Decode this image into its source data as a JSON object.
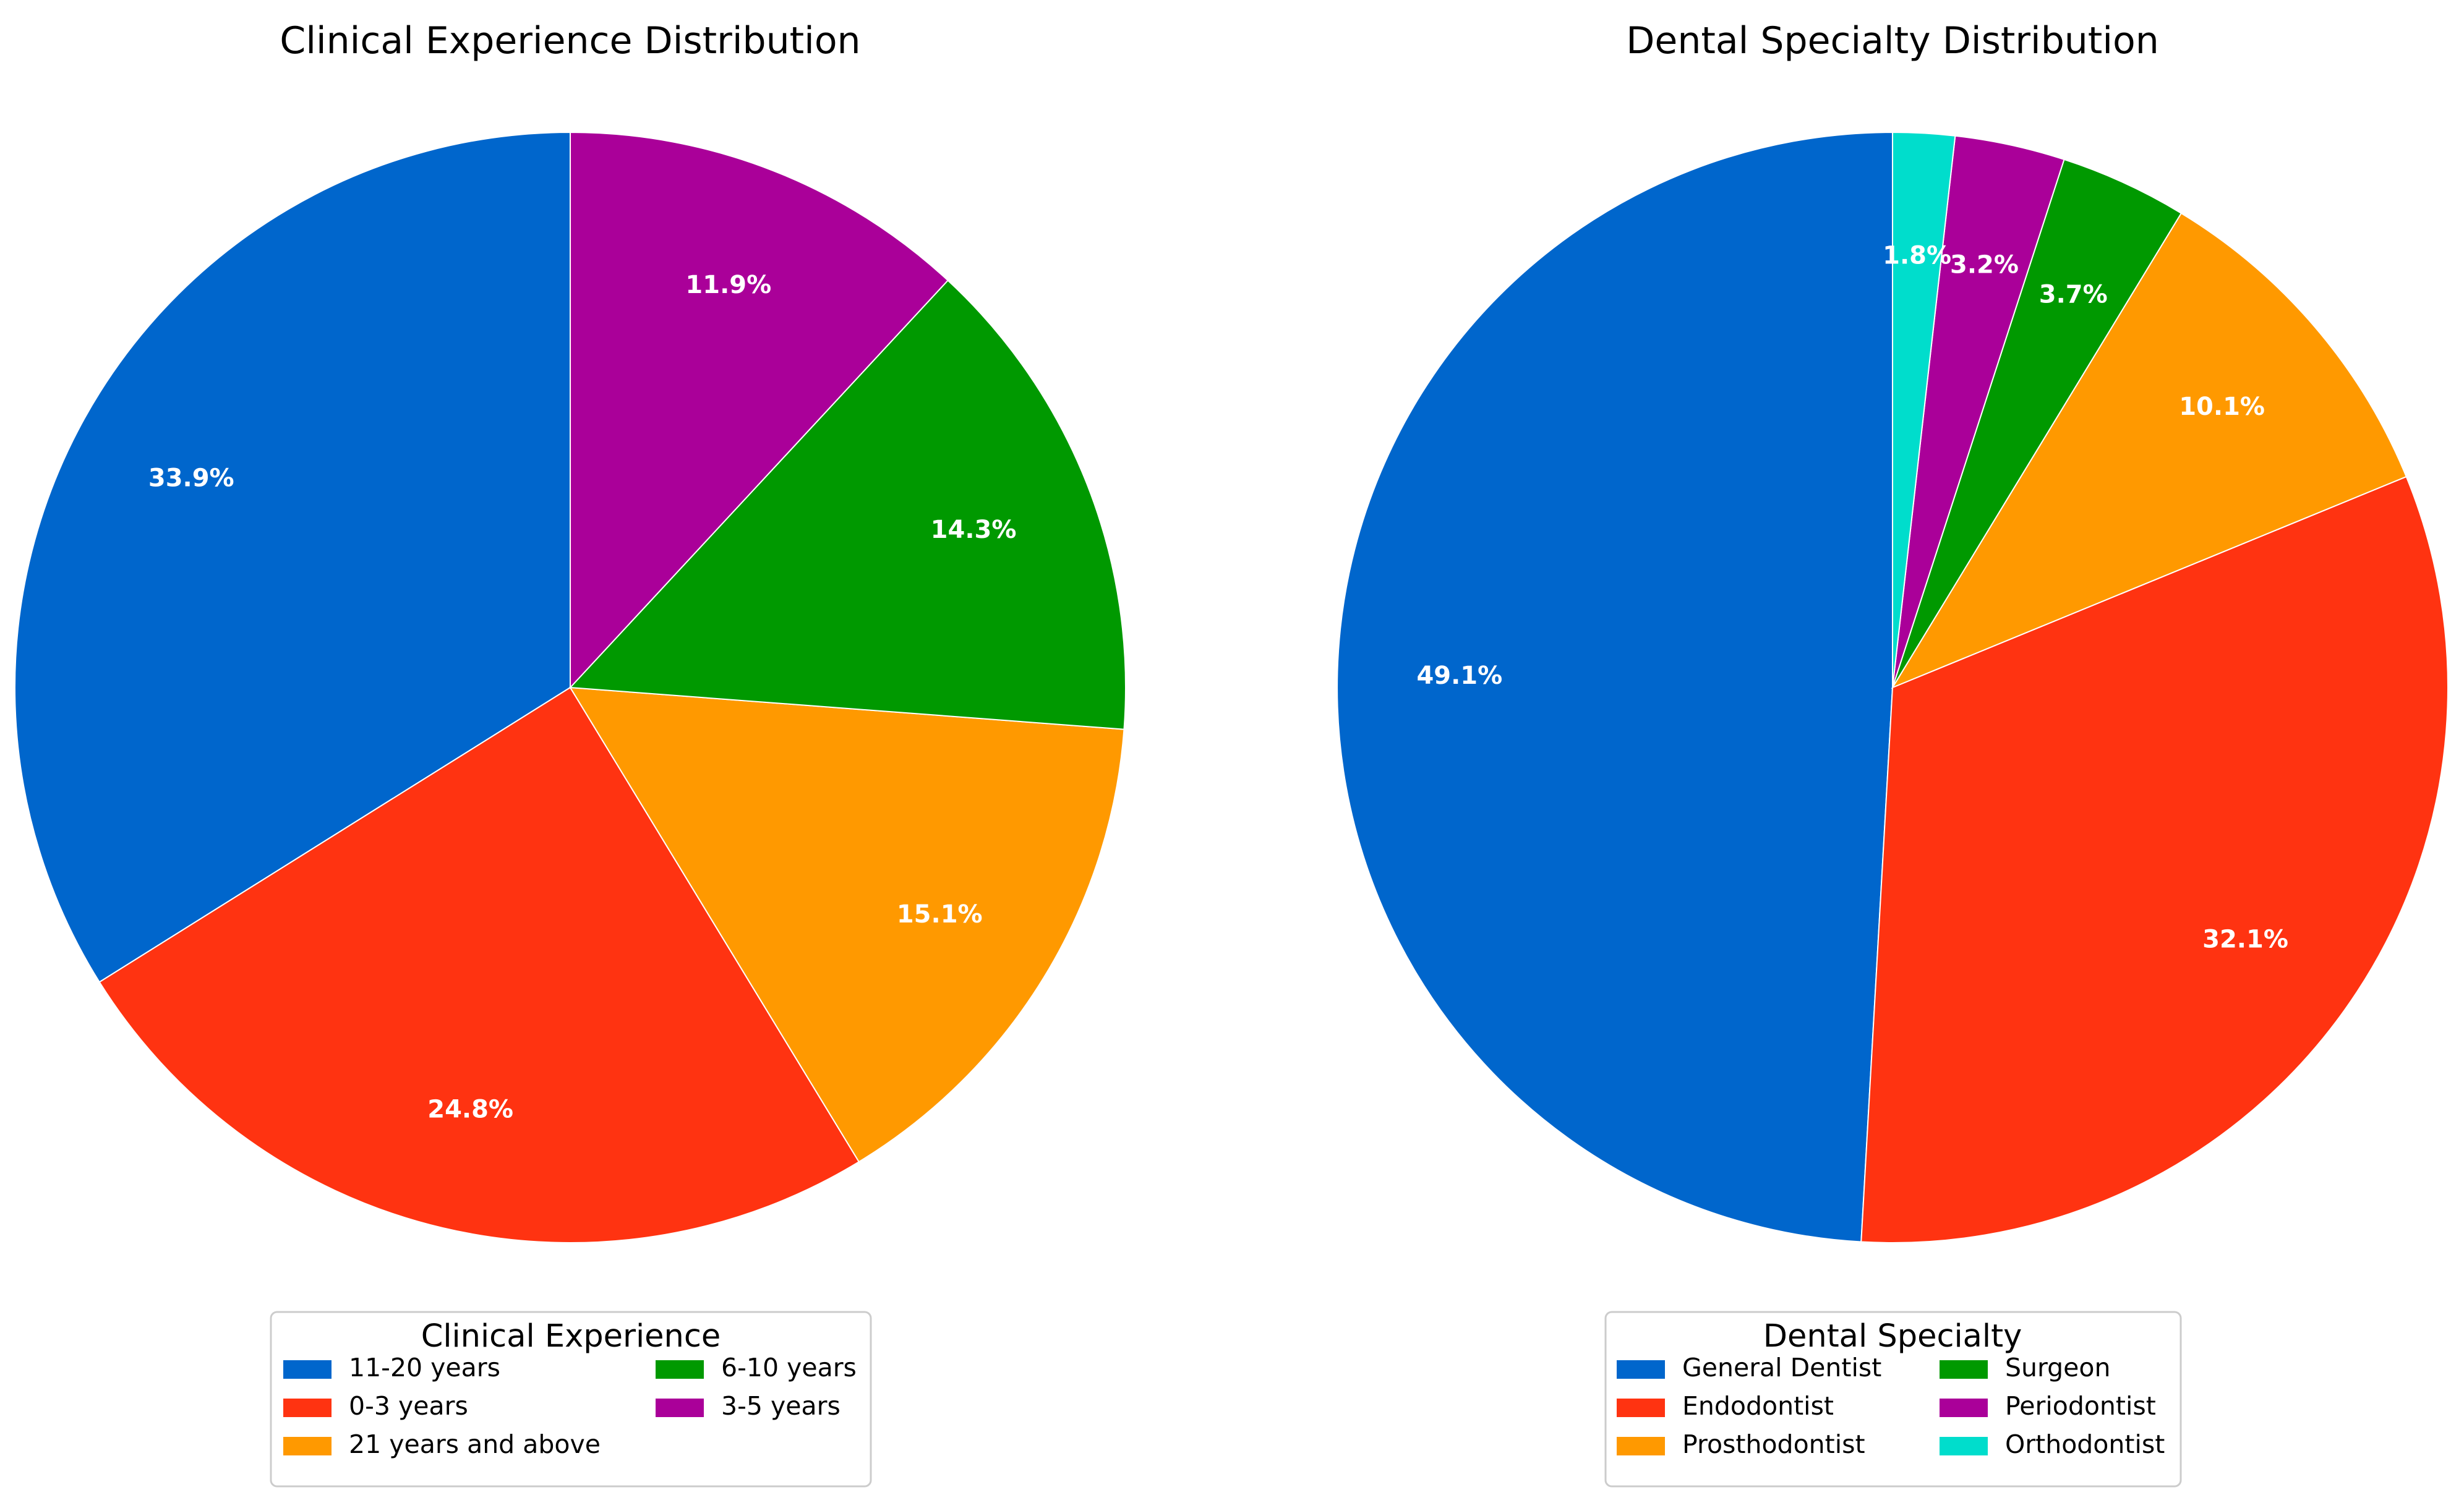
{
  "chart_data": [
    {
      "type": "pie",
      "title": "Clinical Experience Distribution",
      "categories": [
        "11-20 years",
        "0-3 years",
        "21 years and above",
        "6-10 years",
        "3-5 years"
      ],
      "values": [
        33.9,
        24.8,
        15.1,
        14.3,
        11.9
      ],
      "labels": [
        "33.9%",
        "24.8%",
        "15.1%",
        "14.3%",
        "11.9%"
      ],
      "colors": [
        "#0066CC",
        "#FF3311",
        "#FF9900",
        "#009900",
        "#AA0099"
      ],
      "start_angle_deg": 90,
      "direction": "counterclockwise",
      "legend": {
        "title": "Clinical Experience",
        "placement": "bottom-center",
        "columns": 2,
        "entries": [
          "11-20 years",
          "0-3 years",
          "21 years and above",
          "6-10 years",
          "3-5 years"
        ]
      }
    },
    {
      "type": "pie",
      "title": "Dental Specialty Distribution",
      "categories": [
        "General Dentist",
        "Endodontist",
        "Prosthodontist",
        "Surgeon",
        "Periodontist",
        "Orthodontist"
      ],
      "values": [
        49.1,
        32.1,
        10.1,
        3.7,
        3.2,
        1.8
      ],
      "labels": [
        "49.1%",
        "32.1%",
        "10.1%",
        "3.7%",
        "3.2%",
        "1.8%"
      ],
      "colors": [
        "#0066CC",
        "#FF3311",
        "#FF9900",
        "#009900",
        "#AA0099",
        "#00DDCC"
      ],
      "start_angle_deg": 90,
      "direction": "counterclockwise",
      "legend": {
        "title": "Dental Specialty",
        "placement": "bottom-center",
        "columns": 2,
        "entries": [
          "General Dentist",
          "Endodontist",
          "Prosthodontist",
          "Surgeon",
          "Periodontist",
          "Orthodontist"
        ]
      }
    }
  ]
}
